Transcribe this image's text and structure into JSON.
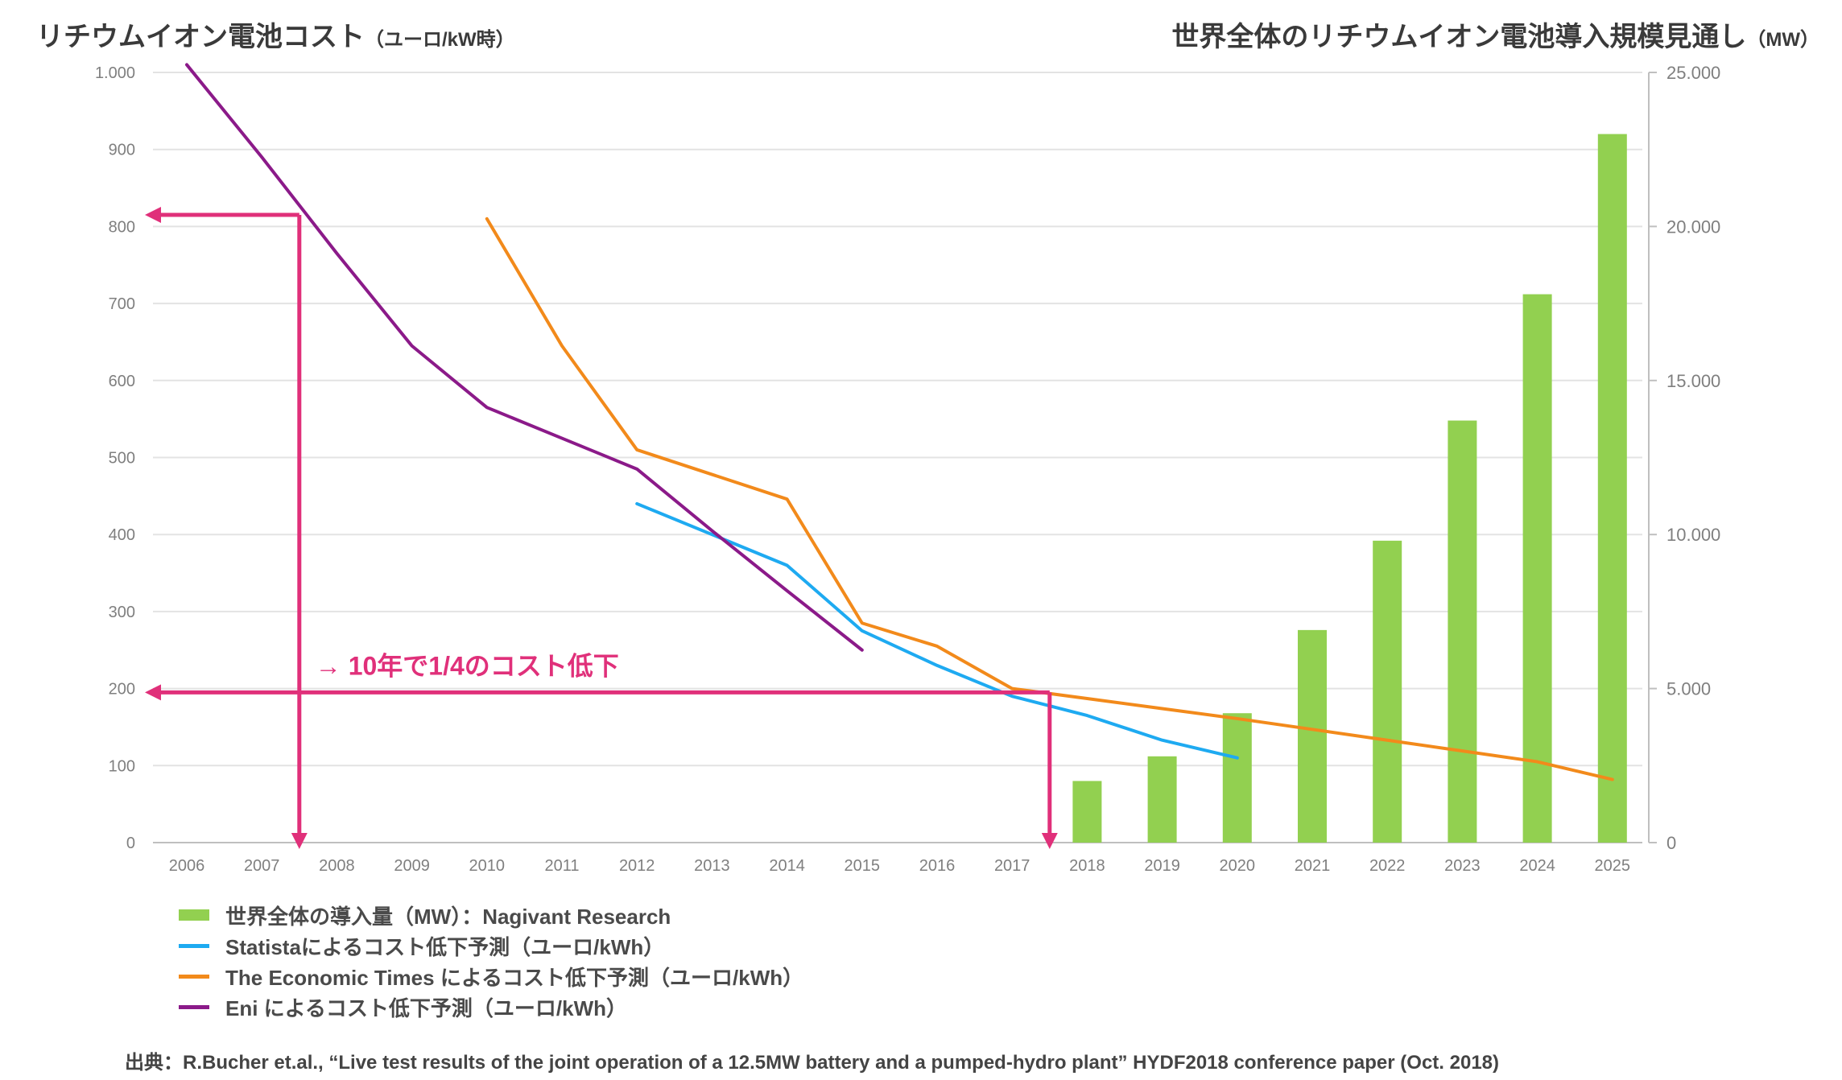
{
  "titles": {
    "left_main": "リチウムイオン電池コスト",
    "left_unit": "（ユーロ/kW時）",
    "right_main": "世界全体のリチウムイオン電池導入規模見通し",
    "right_unit": "（MW）"
  },
  "chart_data": {
    "type": "bar",
    "categories": [
      "2006",
      "2007",
      "2008",
      "2009",
      "2010",
      "2011",
      "2012",
      "2013",
      "2014",
      "2015",
      "2016",
      "2017",
      "2018",
      "2019",
      "2020",
      "2021",
      "2022",
      "2023",
      "2024",
      "2025"
    ],
    "y_left": {
      "ylim": [
        0,
        1000
      ],
      "ticks": [
        0,
        100,
        200,
        300,
        400,
        500,
        600,
        700,
        800,
        900,
        1000
      ],
      "tick_labels": [
        "0",
        "100",
        "200",
        "300",
        "400",
        "500",
        "600",
        "700",
        "800",
        "900",
        "1.000"
      ]
    },
    "y_right": {
      "ylim": [
        0,
        25000
      ],
      "ticks": [
        0,
        5000,
        10000,
        15000,
        20000,
        25000
      ],
      "tick_labels": [
        "0",
        "5.000",
        "10.000",
        "15.000",
        "20.000",
        "25.000"
      ]
    },
    "grid": true,
    "bar_series": {
      "name": "世界全体の導入量（MW）：Nagivant Research",
      "axis": "right",
      "color": "#92d050",
      "values": [
        null,
        null,
        null,
        null,
        null,
        null,
        null,
        null,
        null,
        null,
        null,
        null,
        2000,
        2800,
        4200,
        6900,
        9800,
        13700,
        17800,
        23000
      ]
    },
    "line_series": [
      {
        "name": "Statistaによるコスト低下予測（ユーロ/kWh）",
        "axis": "left",
        "color": "#1eaaf1",
        "values": [
          null,
          null,
          null,
          null,
          null,
          null,
          440,
          400,
          360,
          275,
          230,
          190,
          165,
          133,
          110,
          null,
          null,
          null,
          null,
          null
        ]
      },
      {
        "name": "The Economic Times によるコスト低下予測（ユーロ/kWh）",
        "axis": "left",
        "color": "#f28a1b",
        "values": [
          null,
          null,
          null,
          null,
          810,
          645,
          510,
          478,
          446,
          285,
          255,
          200,
          187,
          174,
          161,
          147,
          133,
          119,
          105,
          82
        ]
      },
      {
        "name": "Eni によるコスト低下予測（ユーロ/kWh）",
        "axis": "left",
        "color": "#8b1a89",
        "values": [
          1010,
          890,
          765,
          645,
          565,
          525,
          485,
          405,
          327,
          250,
          null,
          null,
          null,
          null,
          null,
          null,
          null,
          null,
          null,
          null
        ]
      }
    ],
    "annotation": {
      "text": "→ 10年で1/4のコスト低下",
      "color": "#e0307a",
      "from": {
        "x": 2007.5,
        "y": 815
      },
      "to": {
        "x": 2017.5,
        "y": 195
      }
    }
  },
  "source": "出典：R.Bucher et.al., “Live test results of the joint operation of a 12.5MW battery and a pumped-hydro plant” HYDF2018 conference paper (Oct. 2018)"
}
